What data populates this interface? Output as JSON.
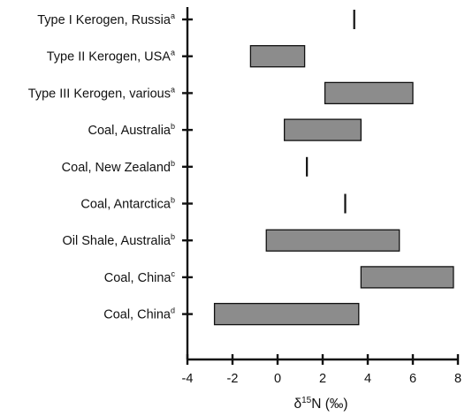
{
  "chart_data": {
    "type": "bar",
    "orientation": "horizontal",
    "subtype": "floating-range",
    "title": "",
    "xlabel_base": "δ",
    "xlabel_sup": "15",
    "xlabel_rest": "N (‰)",
    "ylabel": "",
    "xlim": [
      -4,
      8
    ],
    "xticks": [
      "-4",
      "-2",
      "0",
      "2",
      "4",
      "6",
      "8"
    ],
    "grid": false,
    "legend": "none",
    "bar_color": "#8c8c8c",
    "categories": [
      {
        "label": "Type I Kerogen, Russia",
        "sup": "a",
        "low": 3.4,
        "high": 3.4
      },
      {
        "label": "Type II Kerogen, USA",
        "sup": "a",
        "low": -1.2,
        "high": 1.2
      },
      {
        "label": "Type III Kerogen, various",
        "sup": "a",
        "low": 2.1,
        "high": 6.0
      },
      {
        "label": "Coal, Australia",
        "sup": "b",
        "low": 0.3,
        "high": 3.7
      },
      {
        "label": "Coal, New Zealand",
        "sup": "b",
        "low": 1.3,
        "high": 1.3
      },
      {
        "label": "Coal, Antarctica",
        "sup": "b",
        "low": 3.0,
        "high": 3.0
      },
      {
        "label": "Oil Shale, Australia",
        "sup": "b",
        "low": -0.5,
        "high": 5.4
      },
      {
        "label": "Coal, China",
        "sup": "c",
        "low": 3.7,
        "high": 7.8
      },
      {
        "label": "Coal, China",
        "sup": "d",
        "low": -2.8,
        "high": 3.6
      }
    ]
  }
}
